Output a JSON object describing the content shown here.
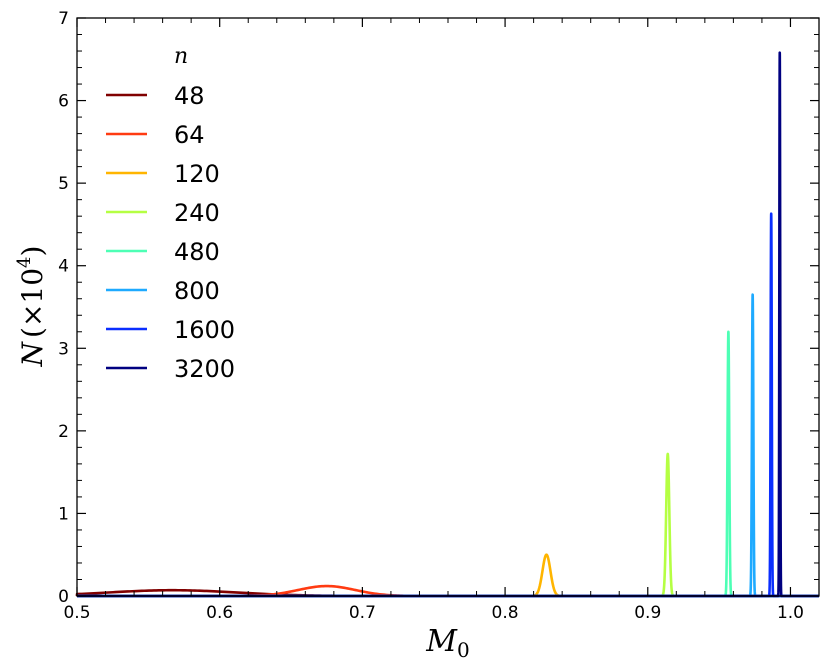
{
  "chart_data": {
    "type": "line",
    "title": "",
    "xlabel": "M",
    "xlabel_sub": "0",
    "ylabel": "N",
    "ylabel_unit_prefix": "(×10",
    "ylabel_unit_exp": "4",
    "ylabel_unit_suffix": ")",
    "xlim": [
      0.5,
      1.02
    ],
    "ylim": [
      0,
      7
    ],
    "x_ticks": [
      "0.5",
      "0.6",
      "0.7",
      "0.8",
      "0.9",
      "1.0"
    ],
    "x_tick_values": [
      0.5,
      0.6,
      0.7,
      0.8,
      0.9,
      1.0
    ],
    "y_ticks": [
      "0",
      "1",
      "2",
      "3",
      "4",
      "5",
      "6",
      "7"
    ],
    "y_tick_values": [
      0,
      1,
      2,
      3,
      4,
      5,
      6,
      7
    ],
    "grid": false,
    "legend": {
      "title": "n",
      "position": "top-left"
    },
    "series": [
      {
        "name": "48",
        "color": "#800000",
        "peak_x": 0.567,
        "peak_y": 0.07,
        "width": 0.045
      },
      {
        "name": "64",
        "color": "#ff3b12",
        "peak_x": 0.675,
        "peak_y": 0.12,
        "width": 0.02
      },
      {
        "name": "120",
        "color": "#ffb500",
        "peak_x": 0.829,
        "peak_y": 0.5,
        "width": 0.0028
      },
      {
        "name": "240",
        "color": "#b5ff43",
        "peak_x": 0.914,
        "peak_y": 1.72,
        "width": 0.0011
      },
      {
        "name": "480",
        "color": "#4dffb5",
        "peak_x": 0.9565,
        "peak_y": 3.2,
        "width": 0.0006
      },
      {
        "name": "800",
        "color": "#1eaaff",
        "peak_x": 0.9735,
        "peak_y": 3.65,
        "width": 0.0005
      },
      {
        "name": "1600",
        "color": "#0a2eff",
        "peak_x": 0.9865,
        "peak_y": 4.63,
        "width": 0.0004
      },
      {
        "name": "3200",
        "color": "#000080",
        "peak_x": 0.9925,
        "peak_y": 6.58,
        "width": 0.0003
      }
    ]
  }
}
